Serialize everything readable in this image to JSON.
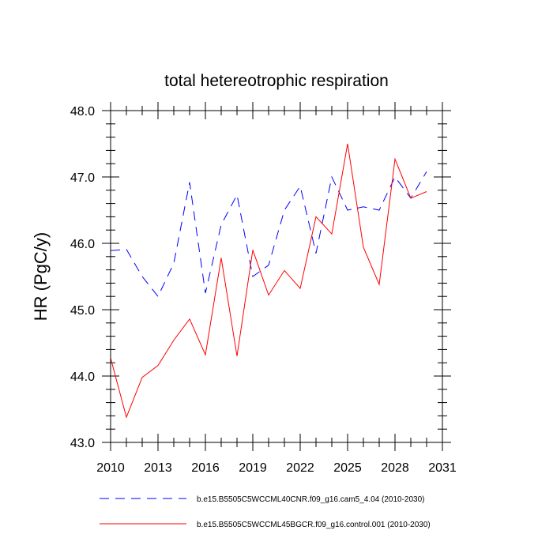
{
  "chart_data": {
    "type": "line",
    "title": "total hetereotrophic respiration",
    "xlabel": "",
    "ylabel": "HR  (PgC/y)",
    "xlim": [
      2010,
      2031
    ],
    "ylim": [
      43.0,
      48.0
    ],
    "x_ticks": [
      2010,
      2013,
      2016,
      2019,
      2022,
      2025,
      2028,
      2031
    ],
    "y_ticks": [
      "43.0",
      "44.0",
      "45.0",
      "46.0",
      "47.0",
      "48.0"
    ],
    "grid": false,
    "legend_position": "bottom",
    "x": [
      2010,
      2011,
      2012,
      2013,
      2014,
      2015,
      2016,
      2017,
      2018,
      2019,
      2020,
      2021,
      2022,
      2023,
      2024,
      2025,
      2026,
      2027,
      2028,
      2029,
      2030
    ],
    "series": [
      {
        "name": "b.e15.B5505C5WCCML40CNR.f09_g16.cam5_4.04 (2010-2030)",
        "color": "#0000ff",
        "style": "dashed",
        "values": [
          45.89,
          45.91,
          45.5,
          45.2,
          45.7,
          46.92,
          45.25,
          46.28,
          46.73,
          45.5,
          45.67,
          46.5,
          46.86,
          45.85,
          47.0,
          46.5,
          46.55,
          46.5,
          47.0,
          46.68,
          47.08
        ]
      },
      {
        "name": "b.e15.B5505C5WCCML45BGCR.f09_g16.control.001 (2010-2030)",
        "color": "#ff0000",
        "style": "solid",
        "values": [
          44.27,
          43.38,
          43.98,
          44.16,
          44.54,
          44.86,
          44.32,
          45.78,
          44.3,
          45.9,
          45.22,
          45.59,
          45.32,
          46.4,
          46.14,
          47.5,
          45.94,
          45.38,
          47.27,
          46.68,
          46.78
        ]
      }
    ]
  }
}
